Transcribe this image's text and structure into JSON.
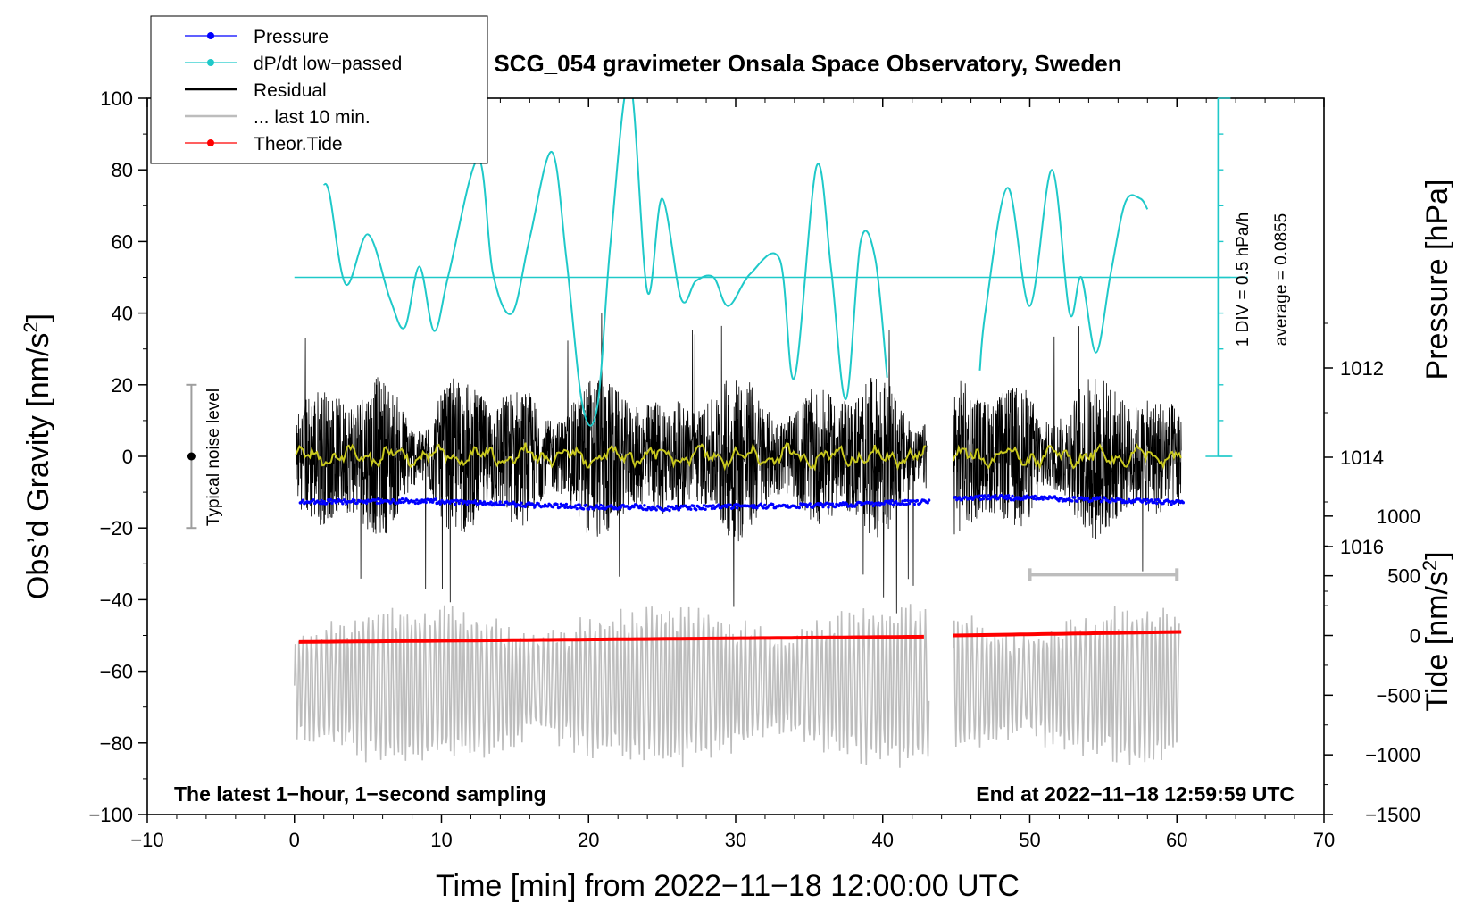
{
  "chart_data": {
    "type": "line",
    "title": "SCG_054 gravimeter Onsala Space Observatory, Sweden",
    "xlabel": "Time [min] from 2022−11−18 12:00:00 UTC",
    "ylabel_left": "Obs’d Gravity [nm/s",
    "ylabel_left_sup": "2",
    "ylabel_left_close": "]",
    "ylabel_right_pressure": "Pressure [hPa]",
    "ylabel_right_tide": "Tide [nm/s",
    "ylabel_right_tide_sup": "2",
    "ylabel_right_tide_close": "]",
    "xlim": [
      -10,
      70
    ],
    "ylim": [
      -100,
      100
    ],
    "pressure_lim": [
      1010.2,
      1018.3
    ],
    "tide_lim": [
      -1500,
      1500
    ],
    "x_ticks": [
      -10,
      0,
      10,
      20,
      30,
      40,
      50,
      60,
      70
    ],
    "x_tick_labels": [
      "−10",
      "0",
      "10",
      "20",
      "30",
      "40",
      "50",
      "60",
      "70"
    ],
    "y_ticks": [
      -100,
      -80,
      -60,
      -40,
      -20,
      0,
      20,
      40,
      60,
      80,
      100
    ],
    "y_tick_labels": [
      "−100",
      "−80",
      "−60",
      "−40",
      "−20",
      "0",
      "20",
      "40",
      "60",
      "80",
      "100"
    ],
    "pressure_ticks": [
      1012,
      1014,
      1016
    ],
    "pressure_tick_labels": [
      "1012",
      "1014",
      "1016"
    ],
    "tide_ticks": [
      -1500,
      -1000,
      -500,
      0,
      500,
      1000
    ],
    "tide_tick_labels": [
      "−1500",
      "−1000",
      "−500",
      "0",
      "500",
      "1000"
    ],
    "legend": [
      {
        "name": "Pressure",
        "color": "#0000ff",
        "marker": "dot"
      },
      {
        "name": "dP/dt low−passed",
        "color": "#1fc9c9",
        "marker": "dot"
      },
      {
        "name": "Residual",
        "color": "#000000",
        "marker": "none"
      },
      {
        "name": "... last 10 min.",
        "color": "#bdbdbd",
        "marker": "none"
      },
      {
        "name": "Theor.Tide",
        "color": "#ff0000",
        "marker": "dot"
      }
    ],
    "legend_position": "top-left",
    "colors": {
      "pressure": "#0000ff",
      "dpdt": "#1fc9c9",
      "residual": "#000000",
      "residual_smooth": "#c8c81e",
      "last10": "#bdbdbd",
      "tide": "#ff0000",
      "noise_bar": "#9e9e9e"
    },
    "annotations": {
      "bottom_left": "The latest 1−hour, 1−second sampling",
      "bottom_right": "End at 2022−11−18 12:59:59 UTC",
      "noise_label": "Typical noise level",
      "dpdt_scale": "1 DIV = 0.5 hPa/h",
      "dpdt_average": "average = 0.0855"
    },
    "noise_level": {
      "x": -7,
      "center": 0,
      "range": [
        -20,
        20
      ]
    },
    "data_gap": [
      43.2,
      44.8
    ],
    "last10_bracket": [
      50,
      60
    ],
    "pressure_series": {
      "x": [
        0.5,
        5,
        10,
        15,
        20,
        23,
        25,
        27,
        30,
        35,
        38,
        40,
        43,
        44.8,
        48,
        52,
        55,
        58,
        60.5
      ],
      "values": [
        1015.0,
        1014.98,
        1014.99,
        1015.05,
        1015.12,
        1015.1,
        1015.15,
        1015.13,
        1015.1,
        1015.08,
        1015.06,
        1015.03,
        1015.0,
        1014.92,
        1014.9,
        1014.93,
        1014.95,
        1014.98,
        1015.02
      ]
    },
    "dpdt_series": {
      "x": [
        2,
        2.4,
        3.5,
        5,
        6.5,
        7.5,
        8.5,
        9.5,
        10.5,
        12.5,
        13.5,
        14.8,
        16,
        17.5,
        18.5,
        19.6,
        20.6,
        21.5,
        22.8,
        24,
        25,
        26.3,
        27.3,
        28.5,
        29.5,
        31,
        33,
        34,
        35.5,
        36.5,
        37.5,
        38.5,
        39.5,
        40.3,
        46.6,
        47,
        48.5,
        50,
        51.5,
        52.7,
        53.5,
        54.5,
        55.5,
        56.5,
        57.5,
        58
      ],
      "values": [
        76,
        73,
        48,
        62,
        44,
        36,
        53,
        35,
        51,
        83,
        51,
        40,
        61,
        85,
        55,
        14,
        14,
        60,
        105,
        46,
        72,
        44,
        49,
        50,
        42,
        51,
        55,
        22,
        81,
        52,
        16,
        60,
        55,
        22,
        24,
        41,
        75,
        42,
        80,
        40,
        50,
        29,
        51,
        71,
        72,
        69
      ]
    },
    "tide_series": {
      "x": [
        0.3,
        43.2,
        44.8,
        60.3
      ],
      "values": [
        -55,
        -10,
        0,
        30
      ]
    }
  }
}
